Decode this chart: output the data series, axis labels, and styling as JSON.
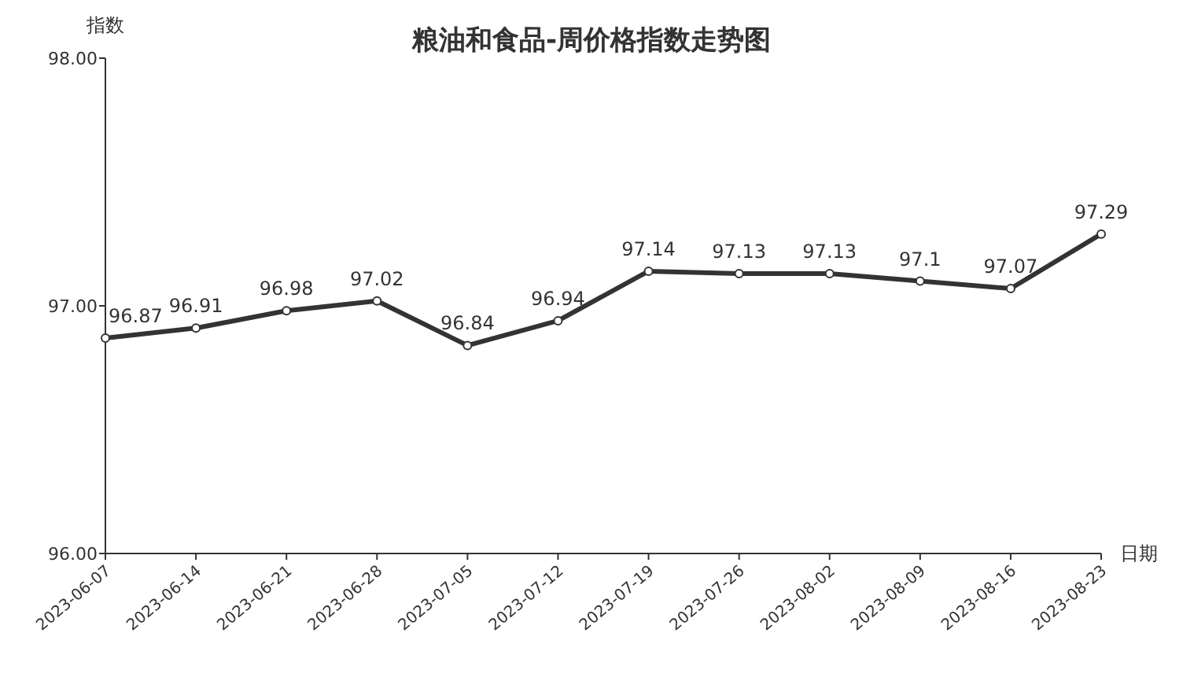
{
  "chart_data": {
    "type": "line",
    "title": "粮油和食品-周价格指数走势图",
    "xlabel": "日期",
    "ylabel": "指数",
    "categories": [
      "2023-06-07",
      "2023-06-14",
      "2023-06-21",
      "2023-06-28",
      "2023-07-05",
      "2023-07-12",
      "2023-07-19",
      "2023-07-26",
      "2023-08-02",
      "2023-08-09",
      "2023-08-16",
      "2023-08-23"
    ],
    "series": [
      {
        "color": "#333333",
        "values": [
          96.87,
          96.91,
          96.98,
          97.02,
          96.84,
          96.94,
          97.14,
          97.13,
          97.13,
          97.1,
          97.07,
          97.29
        ]
      }
    ],
    "ylim": [
      96,
      98
    ],
    "yticks": [
      {
        "value": 96,
        "label": "96.00"
      },
      {
        "value": 97,
        "label": "97.00"
      },
      {
        "value": 98,
        "label": "98.00"
      }
    ],
    "data_labels": true,
    "marker": "circle",
    "line_style": "solid",
    "grid": false
  }
}
